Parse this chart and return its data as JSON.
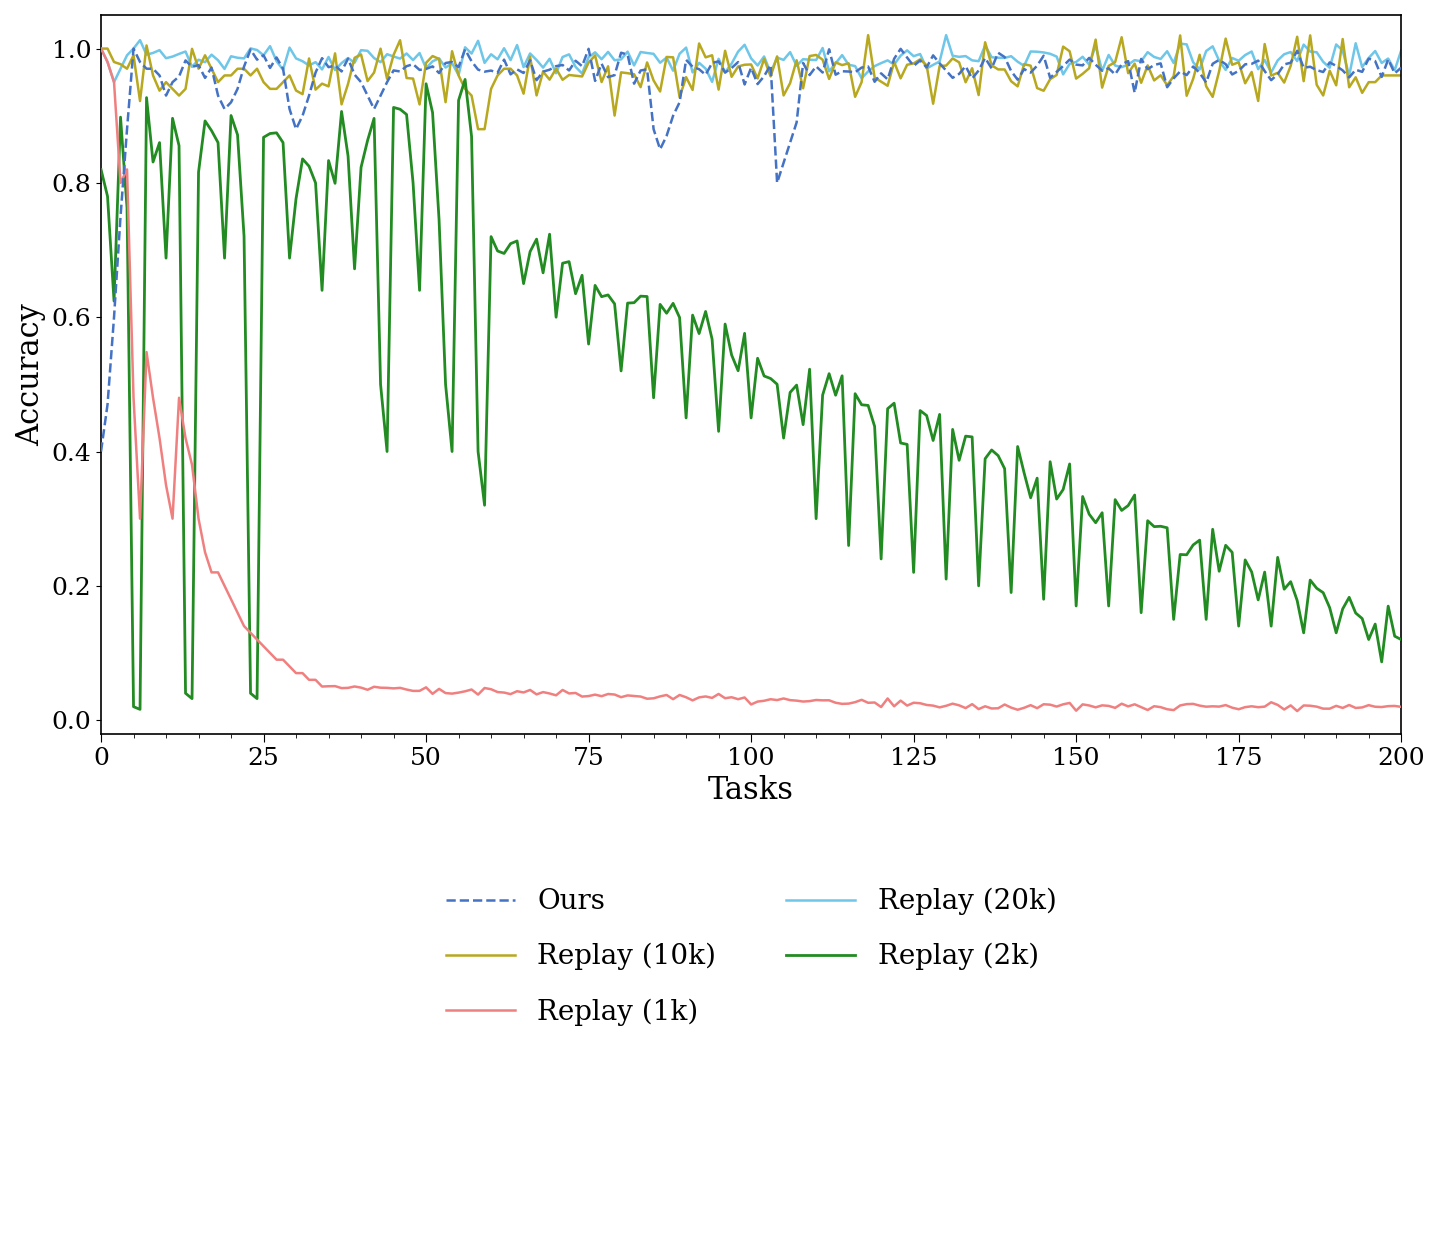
{
  "title": "",
  "xlabel": "Tasks",
  "ylabel": "Accuracy",
  "xlim": [
    0,
    200
  ],
  "ylim": [
    -0.02,
    1.05
  ],
  "yticks": [
    0.0,
    0.2,
    0.4,
    0.6,
    0.8,
    1.0
  ],
  "xticks": [
    0,
    25,
    50,
    75,
    100,
    125,
    150,
    175,
    200
  ],
  "colors": {
    "ours": "#4472C4",
    "replay_1k": "#F08080",
    "replay_2k": "#228B22",
    "replay_10k": "#B8A820",
    "replay_20k": "#6EC6E8"
  },
  "linewidths": {
    "ours": 1.8,
    "replay_1k": 1.8,
    "replay_2k": 2.0,
    "replay_10k": 1.8,
    "replay_20k": 1.8
  },
  "legend_labels": [
    "Ours",
    "Replay (1k)",
    "Replay (2k)",
    "Replay (10k)",
    "Replay (20k)"
  ],
  "font_family": "serif",
  "axis_fontsize": 22,
  "tick_fontsize": 18,
  "legend_fontsize": 20,
  "figure_width": 14.4,
  "figure_height": 12.44
}
